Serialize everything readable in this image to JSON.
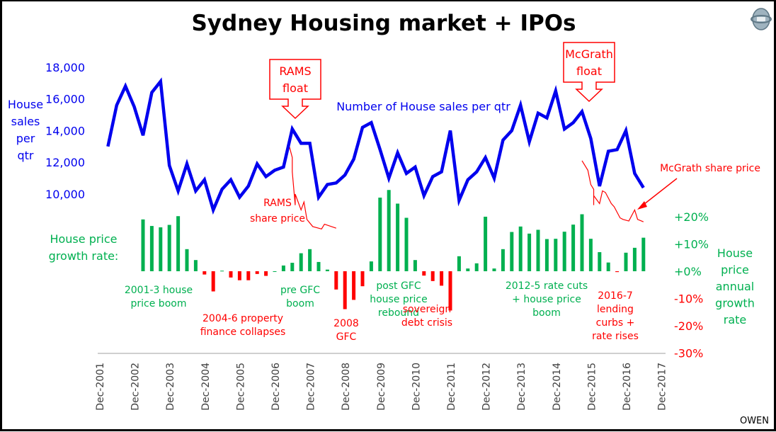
{
  "chart_data": {
    "type": "line+bar",
    "title": "Sydney Housing market + IPOs",
    "watermark": "OWEN",
    "colors": {
      "sales": "#0000ee",
      "growth_pos": "#00b050",
      "growth_neg": "#ff0000",
      "share": "#ff0000",
      "axis_text_left": "#0000ee",
      "axis_text_right": "#00b050",
      "ticks_x": "#404040"
    },
    "left_axis": {
      "label_lines": [
        "House",
        "sales",
        "per",
        "qtr"
      ],
      "ticks": [
        "10,000",
        "12,000",
        "14,000",
        "16,000",
        "18,000"
      ],
      "tick_values": [
        10000,
        12000,
        14000,
        16000,
        18000
      ]
    },
    "right_axis": {
      "label_lines": [
        "House",
        "price",
        "annual",
        "growth",
        "rate"
      ],
      "ticks": [
        "+20%",
        "+10%",
        "+0%",
        "-10%",
        "-20%",
        "-30%"
      ],
      "tick_values": [
        20,
        10,
        0,
        -10,
        -20,
        -30
      ]
    },
    "x_axis": {
      "ticks": [
        "Dec-2001",
        "Dec-2002",
        "Dec-2003",
        "Dec-2004",
        "Dec-2005",
        "Dec-2006",
        "Dec-2007",
        "Dec-2008",
        "Dec-2009",
        "Dec-2010",
        "Dec-2011",
        "Dec-2012",
        "Dec-2013",
        "Dec-2014",
        "Dec-2015",
        "Dec-2016",
        "Dec-2017"
      ]
    },
    "sales_series": {
      "name": "Number of House sales per qtr",
      "start": "2002-03",
      "frequency": "quarterly",
      "values": [
        13000,
        15600,
        16800,
        15500,
        13700,
        16400,
        17100,
        11800,
        10200,
        11900,
        10200,
        10900,
        9000,
        10300,
        10900,
        9800,
        10500,
        11900,
        11100,
        11500,
        11700,
        14100,
        13200,
        13200,
        9800,
        10600,
        10700,
        11200,
        12200,
        14200,
        14500,
        12800,
        11000,
        12600,
        11300,
        11700,
        9900,
        11100,
        11400,
        14000,
        9600,
        10900,
        11400,
        12300,
        11000,
        13400,
        14000,
        15600,
        13300,
        15100,
        14800,
        16500,
        14100,
        14500,
        15200,
        13500,
        10500,
        12700,
        12800,
        14000,
        11300,
        10400
      ]
    },
    "growth_series": {
      "label_lines": [
        "House price",
        "growth rate:"
      ],
      "start": "2002-03",
      "frequency": "quarterly",
      "values": [
        null,
        null,
        null,
        null,
        19.0,
        16.6,
        16.1,
        17.0,
        20.2,
        8.1,
        4.1,
        -1.2,
        -7.4,
        0.2,
        -2.3,
        -3.3,
        -3.3,
        -1.0,
        -1.7,
        0,
        2.1,
        3.1,
        6.6,
        8.1,
        3.4,
        0.6,
        -6.7,
        -13.9,
        -10.5,
        -5.5,
        3.6,
        27.0,
        29.8,
        24.8,
        19.6,
        4.1,
        -1.6,
        -3.6,
        -5.3,
        -14.4,
        5.5,
        1.0,
        2.9,
        20.0,
        1.0,
        8.1,
        14.4,
        16.4,
        13.8,
        15.2,
        11.8,
        11.9,
        14.5,
        17.1,
        20.9,
        11.9,
        7.0,
        3.2,
        -0.3,
        6.8,
        8.6,
        12.3
      ]
    },
    "share_series": [
      {
        "label_lines": [
          "RAMS",
          "share price"
        ],
        "dates": [
          "2007-05",
          "2007-06",
          "2007-06",
          "2007-07",
          "2007-07",
          "2007-09",
          "2007-10",
          "2007-11",
          "2008-01",
          "2008-04",
          "2008-05",
          "2008-09"
        ],
        "values_on_sales_axis": [
          13000,
          12300,
          11400,
          9300,
          10000,
          9000,
          9500,
          8400,
          7950,
          7800,
          8100,
          7850
        ]
      },
      {
        "label_lines": [
          "McGrath share price"
        ],
        "dates": [
          "2015-09",
          "2015-11",
          "2015-12",
          "2016-01",
          "2016-01",
          "2016-01",
          "2016-03",
          "2016-04",
          "2016-05",
          "2016-07",
          "2016-08",
          "2016-10",
          "2016-11",
          "2017-01",
          "2017-03",
          "2017-04",
          "2017-06"
        ],
        "values_on_sales_axis": [
          12100,
          11500,
          10600,
          10300,
          9300,
          9900,
          9400,
          10200,
          10100,
          9400,
          9200,
          8500,
          8400,
          8300,
          9000,
          8400,
          8250
        ]
      }
    ],
    "callouts": [
      {
        "lines": [
          "RAMS",
          "float"
        ],
        "date": "2007-06"
      },
      {
        "lines": [
          "McGrath",
          "float"
        ],
        "date": "2015-09"
      }
    ],
    "annotations": [
      {
        "lines": [
          "2001-3 house",
          "price boom"
        ],
        "color": "#00b050"
      },
      {
        "lines": [
          "2004-6 property",
          "finance collapses"
        ],
        "color": "#ff0000"
      },
      {
        "lines": [
          "pre GFC",
          "boom"
        ],
        "color": "#00b050"
      },
      {
        "lines": [
          "2008",
          "GFC"
        ],
        "color": "#ff0000"
      },
      {
        "lines": [
          "post GFC",
          "house price",
          "rebound"
        ],
        "color": "#00b050"
      },
      {
        "lines": [
          "sovereign",
          "debt crisis"
        ],
        "color": "#ff0000"
      },
      {
        "lines": [
          "2012-5 rate cuts",
          "+ house price",
          "boom"
        ],
        "color": "#00b050"
      },
      {
        "lines": [
          "2016-7",
          "lending",
          "curbs +",
          "rate rises"
        ],
        "color": "#ff0000"
      }
    ],
    "ylim_sales": [
      6000,
      18000
    ],
    "ylim_growth": [
      -30,
      20
    ],
    "grid": false,
    "legend": "none"
  }
}
